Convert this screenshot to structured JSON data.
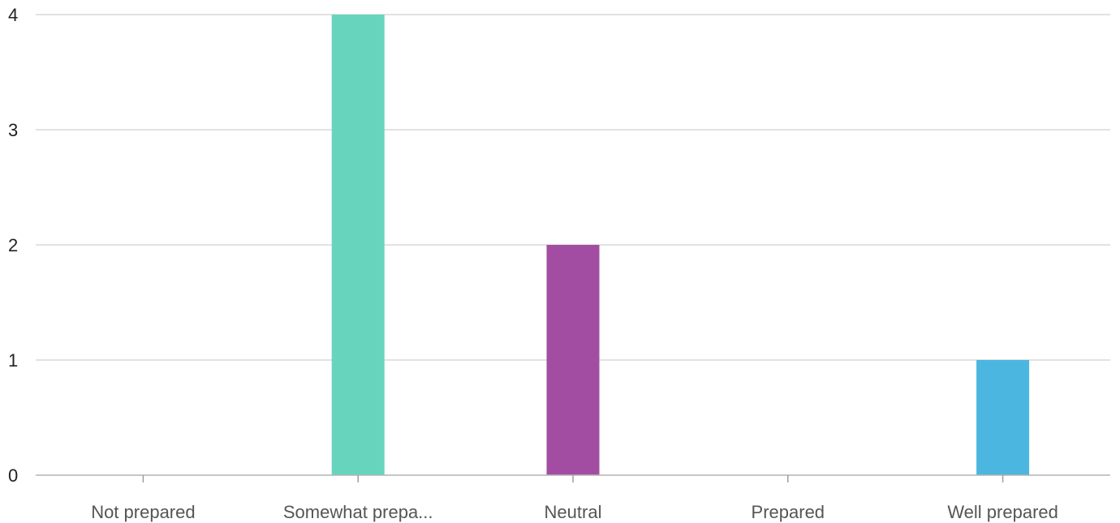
{
  "chart_data": {
    "type": "bar",
    "categories": [
      "Not prepared",
      "Somewhat prepa...",
      "Neutral",
      "Prepared",
      "Well prepared"
    ],
    "values": [
      0,
      4,
      2,
      0,
      1
    ],
    "colors": [
      "#67d5bd",
      "#67d5bd",
      "#a34da2",
      "#67d5bd",
      "#4bb7e0"
    ],
    "ylim": [
      0,
      4
    ],
    "yticks": [
      "0",
      "1",
      "2",
      "3",
      "4"
    ],
    "grid": true,
    "legend": "none"
  }
}
